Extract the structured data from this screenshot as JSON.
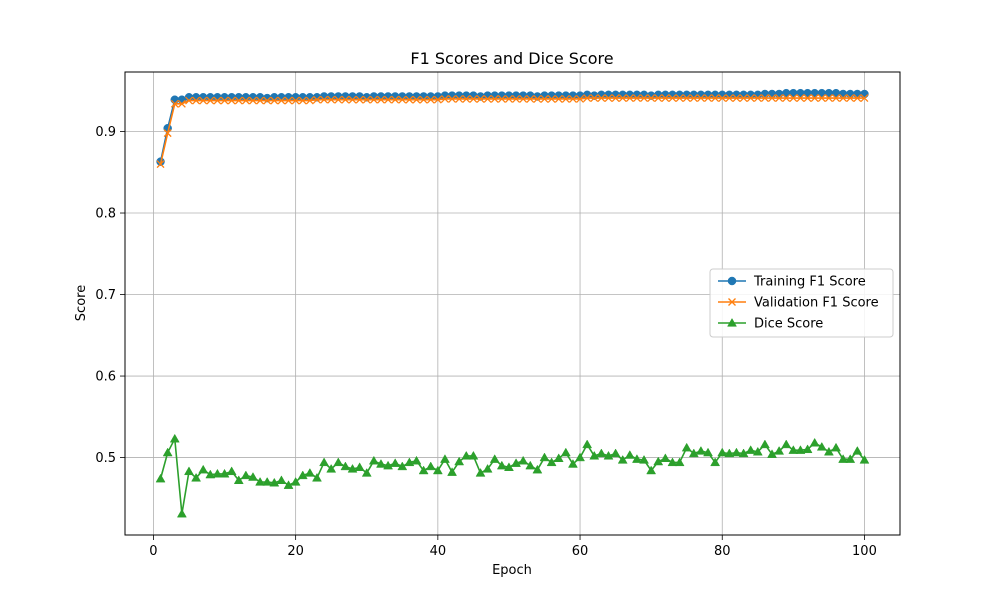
{
  "chart_data": {
    "type": "line",
    "title": "F1 Scores and Dice Score",
    "xlabel": "Epoch",
    "ylabel": "Score",
    "xlim": [
      -4,
      105
    ],
    "ylim": [
      0.405,
      0.973
    ],
    "xticks": [
      0,
      20,
      40,
      60,
      80,
      100
    ],
    "yticks": [
      0.5,
      0.6,
      0.7,
      0.8,
      0.9
    ],
    "grid": true,
    "legend_position": "center-right",
    "x_start": 1,
    "series": [
      {
        "name": "Training F1 Score",
        "color": "#1f77b4",
        "marker": "circle",
        "values": [
          0.863,
          0.904,
          0.939,
          0.939,
          0.942,
          0.942,
          0.942,
          0.942,
          0.942,
          0.942,
          0.942,
          0.942,
          0.942,
          0.942,
          0.942,
          0.941,
          0.942,
          0.942,
          0.942,
          0.942,
          0.942,
          0.942,
          0.942,
          0.943,
          0.943,
          0.943,
          0.943,
          0.943,
          0.943,
          0.942,
          0.943,
          0.943,
          0.943,
          0.943,
          0.943,
          0.943,
          0.943,
          0.943,
          0.943,
          0.943,
          0.944,
          0.944,
          0.944,
          0.944,
          0.944,
          0.943,
          0.944,
          0.944,
          0.944,
          0.944,
          0.944,
          0.944,
          0.944,
          0.943,
          0.944,
          0.944,
          0.944,
          0.944,
          0.944,
          0.944,
          0.945,
          0.944,
          0.945,
          0.945,
          0.945,
          0.945,
          0.945,
          0.945,
          0.945,
          0.944,
          0.945,
          0.945,
          0.945,
          0.945,
          0.945,
          0.945,
          0.945,
          0.945,
          0.945,
          0.945,
          0.945,
          0.945,
          0.945,
          0.945,
          0.945,
          0.946,
          0.946,
          0.946,
          0.947,
          0.947,
          0.947,
          0.947,
          0.947,
          0.947,
          0.947,
          0.947,
          0.946,
          0.946,
          0.946,
          0.946
        ]
      },
      {
        "name": "Validation F1 Score",
        "color": "#ff7f0e",
        "marker": "x",
        "values": [
          0.86,
          0.898,
          0.934,
          0.934,
          0.938,
          0.938,
          0.938,
          0.938,
          0.938,
          0.938,
          0.938,
          0.938,
          0.938,
          0.938,
          0.938,
          0.938,
          0.938,
          0.938,
          0.938,
          0.938,
          0.938,
          0.938,
          0.939,
          0.939,
          0.939,
          0.939,
          0.939,
          0.939,
          0.939,
          0.939,
          0.939,
          0.939,
          0.939,
          0.939,
          0.939,
          0.939,
          0.939,
          0.939,
          0.939,
          0.939,
          0.94,
          0.94,
          0.94,
          0.94,
          0.94,
          0.94,
          0.94,
          0.94,
          0.94,
          0.94,
          0.94,
          0.94,
          0.94,
          0.94,
          0.94,
          0.94,
          0.94,
          0.94,
          0.94,
          0.94,
          0.941,
          0.941,
          0.941,
          0.941,
          0.941,
          0.941,
          0.941,
          0.941,
          0.941,
          0.941,
          0.941,
          0.941,
          0.941,
          0.941,
          0.941,
          0.941,
          0.941,
          0.941,
          0.941,
          0.941,
          0.941,
          0.941,
          0.941,
          0.941,
          0.941,
          0.941,
          0.941,
          0.941,
          0.941,
          0.941,
          0.941,
          0.941,
          0.941,
          0.941,
          0.941,
          0.941,
          0.941,
          0.941,
          0.941,
          0.941
        ]
      },
      {
        "name": "Dice Score",
        "color": "#2ca02c",
        "marker": "triangle",
        "values": [
          0.474,
          0.506,
          0.523,
          0.431,
          0.483,
          0.475,
          0.485,
          0.479,
          0.48,
          0.48,
          0.483,
          0.472,
          0.478,
          0.476,
          0.47,
          0.47,
          0.469,
          0.472,
          0.466,
          0.47,
          0.478,
          0.481,
          0.475,
          0.494,
          0.486,
          0.494,
          0.489,
          0.486,
          0.488,
          0.481,
          0.496,
          0.492,
          0.49,
          0.493,
          0.489,
          0.494,
          0.496,
          0.484,
          0.489,
          0.484,
          0.498,
          0.482,
          0.495,
          0.502,
          0.502,
          0.481,
          0.486,
          0.498,
          0.49,
          0.488,
          0.493,
          0.496,
          0.49,
          0.485,
          0.5,
          0.494,
          0.499,
          0.506,
          0.492,
          0.5,
          0.516,
          0.502,
          0.505,
          0.502,
          0.505,
          0.497,
          0.503,
          0.498,
          0.497,
          0.484,
          0.495,
          0.499,
          0.494,
          0.494,
          0.512,
          0.505,
          0.508,
          0.506,
          0.494,
          0.506,
          0.505,
          0.506,
          0.505,
          0.509,
          0.507,
          0.516,
          0.504,
          0.508,
          0.516,
          0.509,
          0.509,
          0.51,
          0.518,
          0.513,
          0.507,
          0.512,
          0.498,
          0.498,
          0.508,
          0.497
        ]
      }
    ]
  }
}
